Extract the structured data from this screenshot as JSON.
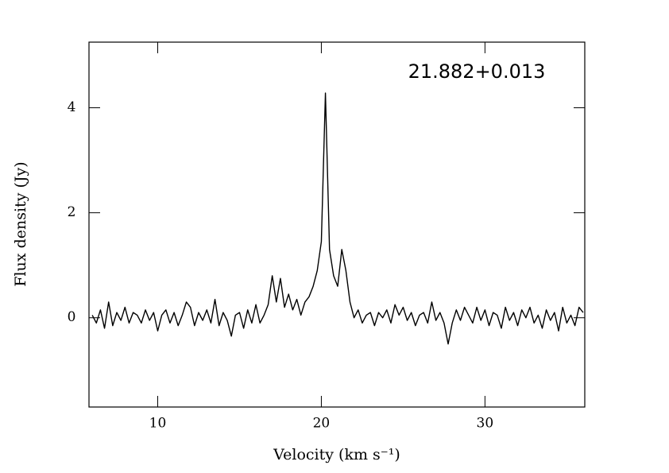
{
  "chart_data": {
    "type": "line",
    "xlabel": "Velocity (km s⁻¹)",
    "ylabel": "Flux density (Jy)",
    "annotation": "21.882+0.013",
    "color": "#000000",
    "xlim": [
      5.8,
      36.1
    ],
    "ylim": [
      -1.7,
      5.25
    ],
    "xticks": [
      10,
      20,
      30
    ],
    "yticks": [
      0,
      2,
      4
    ],
    "x": [
      6.0,
      6.25,
      6.5,
      6.75,
      7.0,
      7.25,
      7.5,
      7.75,
      8.0,
      8.25,
      8.5,
      8.75,
      9.0,
      9.25,
      9.5,
      9.75,
      10.0,
      10.25,
      10.5,
      10.75,
      11.0,
      11.25,
      11.5,
      11.75,
      12.0,
      12.25,
      12.5,
      12.75,
      13.0,
      13.25,
      13.5,
      13.75,
      14.0,
      14.25,
      14.5,
      14.75,
      15.0,
      15.25,
      15.5,
      15.75,
      16.0,
      16.25,
      16.5,
      16.75,
      17.0,
      17.25,
      17.5,
      17.75,
      18.0,
      18.25,
      18.5,
      18.75,
      19.0,
      19.25,
      19.5,
      19.75,
      20.0,
      20.25,
      20.5,
      20.75,
      21.0,
      21.25,
      21.5,
      21.75,
      22.0,
      22.25,
      22.5,
      22.75,
      23.0,
      23.25,
      23.5,
      23.75,
      24.0,
      24.25,
      24.5,
      24.75,
      25.0,
      25.25,
      25.5,
      25.75,
      26.0,
      26.25,
      26.5,
      26.75,
      27.0,
      27.25,
      27.5,
      27.75,
      28.0,
      28.25,
      28.5,
      28.75,
      29.0,
      29.25,
      29.5,
      29.75,
      30.0,
      30.25,
      30.5,
      30.75,
      31.0,
      31.25,
      31.5,
      31.75,
      32.0,
      32.25,
      32.5,
      32.75,
      33.0,
      33.25,
      33.5,
      33.75,
      34.0,
      34.25,
      34.5,
      34.75,
      35.0,
      35.25,
      35.5,
      35.75,
      36.0
    ],
    "values": [
      0.05,
      -0.1,
      0.15,
      -0.2,
      0.3,
      -0.15,
      0.1,
      -0.05,
      0.2,
      -0.1,
      0.1,
      0.05,
      -0.1,
      0.15,
      -0.05,
      0.1,
      -0.25,
      0.05,
      0.15,
      -0.1,
      0.1,
      -0.15,
      0.05,
      0.3,
      0.2,
      -0.15,
      0.1,
      -0.05,
      0.15,
      -0.1,
      0.35,
      -0.15,
      0.1,
      -0.05,
      -0.35,
      0.05,
      0.1,
      -0.2,
      0.15,
      -0.1,
      0.25,
      -0.1,
      0.05,
      0.25,
      0.8,
      0.3,
      0.75,
      0.2,
      0.45,
      0.15,
      0.35,
      0.05,
      0.3,
      0.4,
      0.6,
      0.9,
      1.45,
      4.28,
      1.3,
      0.8,
      0.6,
      1.3,
      0.9,
      0.3,
      0.0,
      0.15,
      -0.1,
      0.05,
      0.1,
      -0.15,
      0.1,
      0.0,
      0.15,
      -0.1,
      0.25,
      0.05,
      0.2,
      -0.05,
      0.1,
      -0.15,
      0.05,
      0.1,
      -0.1,
      0.3,
      -0.05,
      0.1,
      -0.1,
      -0.5,
      -0.1,
      0.15,
      -0.05,
      0.2,
      0.05,
      -0.1,
      0.2,
      -0.05,
      0.15,
      -0.15,
      0.1,
      0.05,
      -0.2,
      0.2,
      -0.05,
      0.1,
      -0.15,
      0.15,
      0.0,
      0.2,
      -0.1,
      0.05,
      -0.2,
      0.15,
      -0.05,
      0.1,
      -0.25,
      0.2,
      -0.1,
      0.05,
      -0.15,
      0.2,
      0.1
    ]
  }
}
